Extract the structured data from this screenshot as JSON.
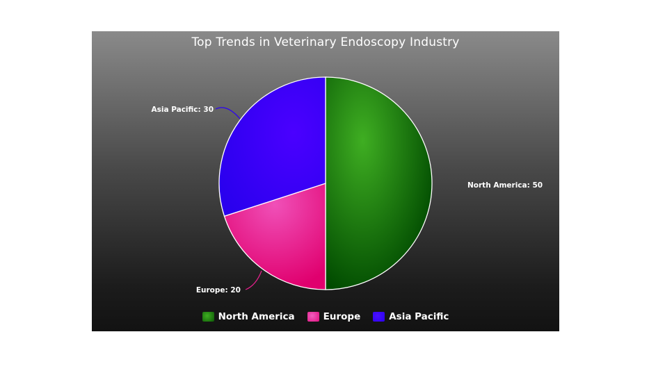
{
  "chart_data": {
    "type": "pie",
    "title": "Top Trends in Veterinary Endoscopy Industry",
    "categories": [
      "North America",
      "Europe",
      "Asia Pacific"
    ],
    "values": [
      50,
      20,
      30
    ],
    "colors": [
      "#1e7a12",
      "#e8208e",
      "#2a00f5"
    ],
    "data_labels": [
      "North America: 50",
      "Europe: 20",
      "Asia Pacific: 30"
    ],
    "legend_position": "bottom"
  }
}
